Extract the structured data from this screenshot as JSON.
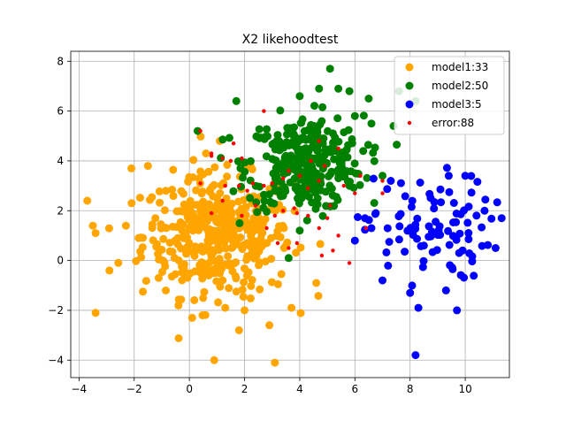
{
  "chart_data": {
    "type": "scatter",
    "title": "X2 likehoodtest",
    "xlabel": "",
    "ylabel": "",
    "xlim": [
      -4.3,
      11.6
    ],
    "ylim": [
      -4.7,
      8.4
    ],
    "xticks": [
      -4,
      -2,
      0,
      2,
      4,
      6,
      8,
      10
    ],
    "yticks": [
      -4,
      -2,
      0,
      2,
      4,
      6,
      8
    ],
    "grid": true,
    "legend_position": "top-right",
    "series": [
      {
        "name": "model1:33",
        "color": "#ffa500",
        "center": [
          1.0,
          1.0
        ],
        "spread": 1.35,
        "count": 420,
        "points": [
          [
            -3.4,
            -2.1
          ],
          [
            -3.4,
            1.1
          ],
          [
            -3.5,
            1.4
          ],
          [
            -2.9,
            -0.4
          ],
          [
            -2.3,
            1.4
          ],
          [
            -2.1,
            3.7
          ],
          [
            -1.5,
            3.8
          ],
          [
            0.9,
            -4.0
          ],
          [
            3.1,
            -4.1
          ],
          [
            0.1,
            -2.3
          ],
          [
            1.8,
            -2.8
          ],
          [
            2.9,
            -2.6
          ],
          [
            3.7,
            -1.9
          ],
          [
            4.6,
            -0.9
          ],
          [
            0.5,
            -1.5
          ],
          [
            1.3,
            -1.9
          ],
          [
            2.0,
            -2.0
          ],
          [
            0.6,
            4.3
          ],
          [
            1.1,
            4.8
          ],
          [
            3.2,
            3.5
          ]
        ]
      },
      {
        "name": "model2:50",
        "color": "#008000",
        "center": [
          4.2,
          3.9
        ],
        "spread": 1.05,
        "count": 330,
        "points": [
          [
            5.1,
            7.7
          ],
          [
            4.0,
            6.6
          ],
          [
            5.4,
            6.9
          ],
          [
            4.7,
            6.9
          ],
          [
            5.8,
            6.8
          ],
          [
            6.5,
            6.5
          ],
          [
            1.7,
            6.4
          ],
          [
            0.3,
            5.2
          ],
          [
            7.6,
            6.8
          ],
          [
            8.2,
            6.4
          ],
          [
            6.0,
            5.8
          ],
          [
            6.6,
            5.5
          ],
          [
            7.4,
            5.4
          ],
          [
            7.0,
            3.4
          ],
          [
            6.3,
            4.4
          ]
        ]
      },
      {
        "name": "model3:5",
        "color": "#0000ff",
        "center": [
          8.6,
          1.3
        ],
        "spread": 1.15,
        "count": 90,
        "points": [
          [
            8.2,
            -3.8
          ],
          [
            7.0,
            -0.8
          ],
          [
            8.0,
            -1.3
          ],
          [
            9.3,
            -1.2
          ],
          [
            9.7,
            -2.0
          ],
          [
            11.1,
            0.5
          ],
          [
            10.0,
            3.4
          ],
          [
            9.4,
            3.4
          ],
          [
            10.7,
            2.0
          ],
          [
            7.3,
            3.2
          ],
          [
            8.3,
            -1.9
          ],
          [
            6.0,
            0.8
          ],
          [
            6.6,
            1.3
          ]
        ]
      }
    ],
    "error_series": {
      "name": "error:88",
      "color": "#ff0000",
      "points": [
        [
          0.4,
          5.2
        ],
        [
          0.8,
          4.3
        ],
        [
          1.2,
          4.1
        ],
        [
          1.6,
          4.7
        ],
        [
          1.9,
          4.1
        ],
        [
          2.7,
          6.0
        ],
        [
          3.6,
          3.6
        ],
        [
          4.7,
          4.8
        ],
        [
          5.4,
          4.5
        ],
        [
          0.4,
          3.1
        ],
        [
          0.8,
          1.9
        ],
        [
          1.3,
          3.0
        ],
        [
          1.8,
          3.0
        ],
        [
          2.3,
          3.1
        ],
        [
          2.7,
          3.0
        ],
        [
          3.0,
          3.1
        ],
        [
          3.4,
          3.3
        ],
        [
          1.9,
          1.8
        ],
        [
          2.8,
          1.3
        ],
        [
          3.1,
          1.8
        ],
        [
          3.4,
          2.0
        ],
        [
          3.9,
          1.9
        ],
        [
          4.3,
          1.8
        ],
        [
          4.7,
          1.3
        ],
        [
          5.0,
          1.7
        ],
        [
          3.2,
          0.7
        ],
        [
          3.6,
          0.5
        ],
        [
          3.9,
          0.7
        ],
        [
          4.8,
          0.2
        ],
        [
          5.2,
          0.4
        ],
        [
          5.8,
          -0.1
        ],
        [
          4.3,
          2.9
        ],
        [
          4.7,
          3.2
        ],
        [
          4.9,
          3.8
        ],
        [
          5.4,
          1.0
        ],
        [
          6.0,
          2.7
        ],
        [
          6.4,
          1.3
        ],
        [
          7.0,
          2.7
        ],
        [
          7.0,
          3.2
        ],
        [
          2.1,
          2.8
        ],
        [
          1.2,
          2.4
        ],
        [
          0.8,
          4.2
        ],
        [
          1.5,
          4.0
        ],
        [
          2.4,
          2.2
        ],
        [
          3.8,
          2.1
        ],
        [
          4.0,
          3.4
        ],
        [
          4.4,
          4.0
        ],
        [
          5.1,
          2.2
        ],
        [
          5.6,
          3.0
        ],
        [
          6.2,
          3.4
        ]
      ]
    }
  }
}
